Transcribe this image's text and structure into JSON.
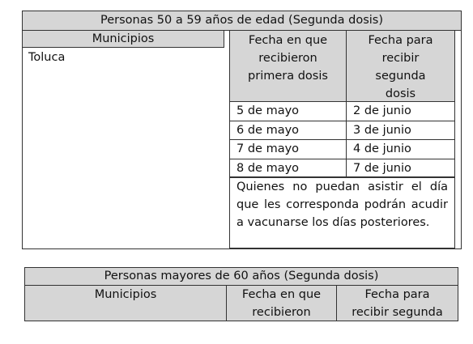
{
  "table1": {
    "title": "Personas 50 a 59 años de edad (Segunda dosis)",
    "headers": [
      "Municipios",
      "Fecha en que recibieron primera dosis",
      "Fecha para recibir segunda dosis"
    ],
    "municipio": "Toluca",
    "rows": [
      [
        "5 de mayo",
        "2 de junio"
      ],
      [
        "6 de mayo",
        "3 de junio"
      ],
      [
        "7 de mayo",
        "4 de junio"
      ],
      [
        "8 de mayo",
        "7 de junio"
      ]
    ],
    "note": "Quienes no puedan asistir el día que les corresponda podrán acudir a vacunarse los días posteriores."
  },
  "table2": {
    "title": "Personas mayores de 60 años (Segunda dosis)",
    "headers": [
      "Municipios",
      "Fecha en que recibieron",
      "Fecha para recibir segunda"
    ]
  }
}
